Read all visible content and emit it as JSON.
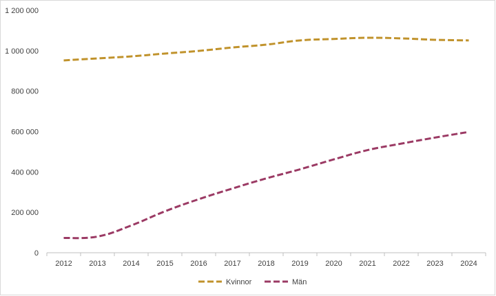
{
  "chart_data": {
    "type": "line",
    "title": "",
    "xlabel": "",
    "ylabel": "",
    "categories": [
      "2012",
      "2013",
      "2014",
      "2015",
      "2016",
      "2017",
      "2018",
      "2019",
      "2020",
      "2021",
      "2022",
      "2023",
      "2024"
    ],
    "y_ticks": [
      0,
      200000,
      400000,
      600000,
      800000,
      1000000,
      1200000
    ],
    "y_tick_labels": [
      "0",
      "200 000",
      "400 000",
      "600 000",
      "800 000",
      "1 000 000",
      "1 200 000"
    ],
    "ylim": [
      0,
      1200000
    ],
    "grid": false,
    "legend_position": "bottom",
    "line_style": "dashed",
    "series": [
      {
        "name": "Kvinnor",
        "color": "#c0922b",
        "values": [
          952000,
          962000,
          972000,
          986000,
          999000,
          1016000,
          1030000,
          1051000,
          1058000,
          1064000,
          1061000,
          1054000,
          1051000
        ]
      },
      {
        "name": "Män",
        "color": "#9b3a64",
        "values": [
          73000,
          80000,
          135000,
          205000,
          265000,
          318000,
          368000,
          413000,
          462000,
          508000,
          540000,
          570000,
          598000
        ]
      }
    ]
  }
}
